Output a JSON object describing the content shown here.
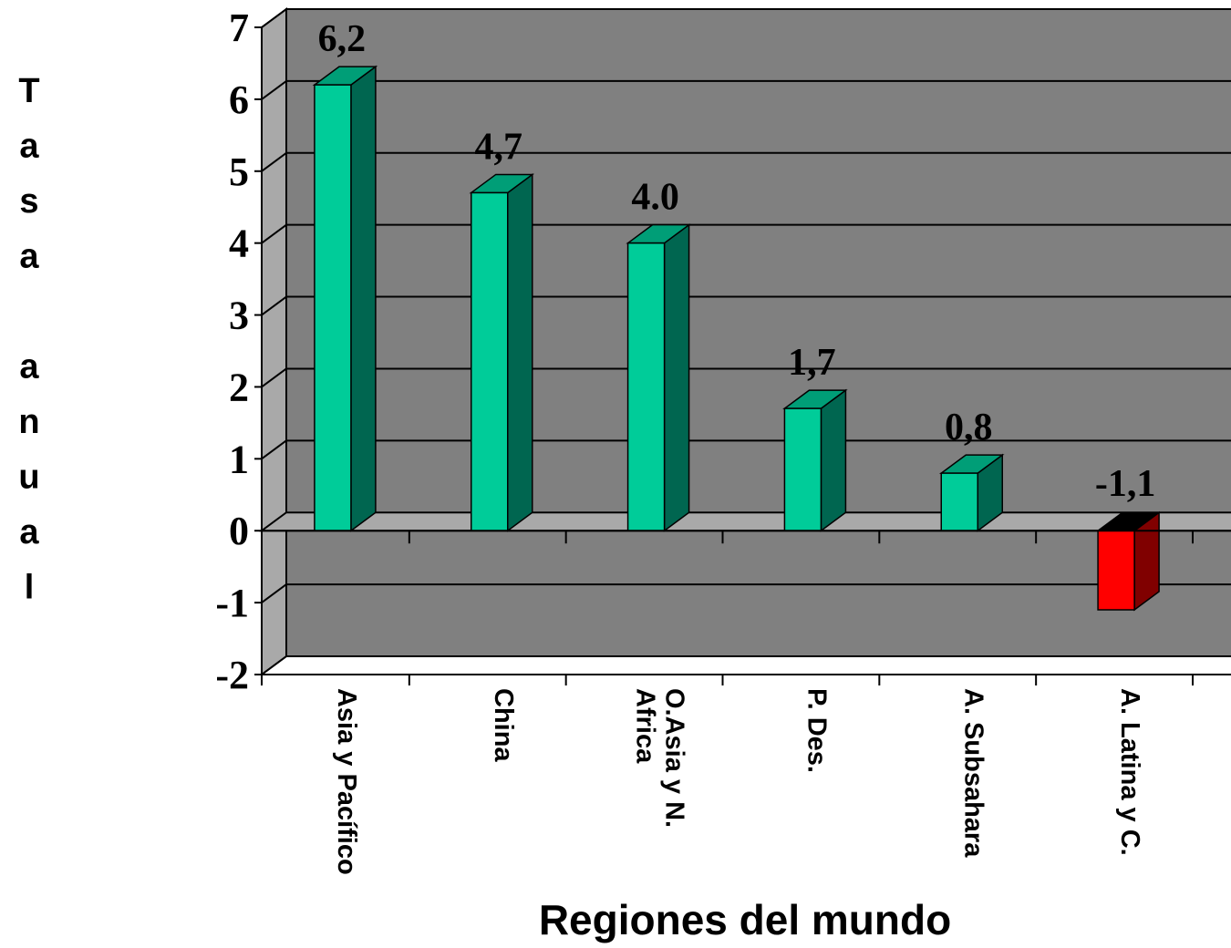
{
  "chart_data": {
    "type": "bar",
    "title": "",
    "xlabel": "Regiones del mundo",
    "ylabel": "Tasa anual",
    "categories": [
      "Asia y Pacífico",
      "China",
      "O.Asia y N. Africa",
      "P. Des.",
      "A. Subsahara",
      "A. Latina y C."
    ],
    "category_lines": [
      [
        "Asia y Pacífico"
      ],
      [
        "China"
      ],
      [
        "O.Asia y N.",
        "Africa"
      ],
      [
        "P. Des."
      ],
      [
        "A. Subsahara"
      ],
      [
        "A. Latina y C."
      ]
    ],
    "values": [
      6.2,
      4.7,
      4.0,
      1.7,
      0.8,
      -1.1
    ],
    "data_labels": [
      "6,2",
      "4,7",
      "4.0",
      "1,7",
      "0,8",
      "-1,1"
    ],
    "ylim": [
      -2,
      7
    ],
    "yticks": [
      "-2",
      "-1",
      "0",
      "1",
      "2",
      "3",
      "4",
      "5",
      "6",
      "7"
    ],
    "grid": true,
    "legend": "none",
    "colors": {
      "wall": "#808080",
      "floor": "#a9a9a9",
      "positive_front": "#00cc99",
      "positive_side": "#006650",
      "positive_top": "#009e77",
      "negative_front": "#ff0000",
      "negative_side": "#800000",
      "negative_top": "#000000",
      "gridline": "#000000"
    }
  }
}
